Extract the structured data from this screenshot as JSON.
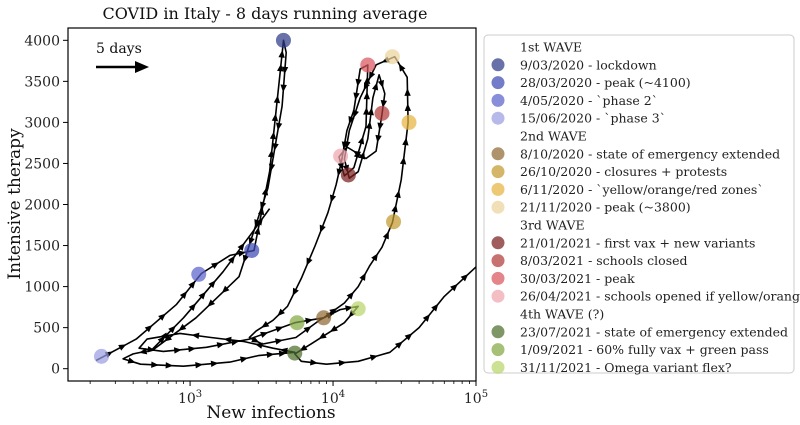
{
  "chart_data": {
    "type": "line",
    "title": "COVID in Italy - 8 days running average",
    "xlabel": "New infections",
    "ylabel": "Intensive therapy",
    "xscale": "log",
    "xlim": [
      140,
      100000
    ],
    "ylim": [
      -150,
      4150
    ],
    "xticks": [
      {
        "value": 1000,
        "base": "10",
        "exp": "3"
      },
      {
        "value": 10000,
        "base": "10",
        "exp": "4"
      },
      {
        "value": 100000,
        "base": "10",
        "exp": "5"
      }
    ],
    "yticks": [
      0,
      500,
      1000,
      1500,
      2000,
      2500,
      3000,
      3500,
      4000
    ],
    "annotation": {
      "text": "5 days",
      "arrow": "right"
    },
    "trajectory": [
      [
        220,
        100
      ],
      [
        420,
        360
      ],
      [
        800,
        780
      ],
      [
        1200,
        1160
      ],
      [
        1900,
        1380
      ],
      [
        2800,
        1440
      ],
      [
        3600,
        2400
      ],
      [
        4200,
        3500
      ],
      [
        4500,
        4000
      ],
      [
        4700,
        3850
      ],
      [
        4400,
        3200
      ],
      [
        3500,
        2200
      ],
      [
        2200,
        1120
      ],
      [
        1100,
        620
      ],
      [
        550,
        230
      ],
      [
        400,
        180
      ],
      [
        340,
        120
      ],
      [
        450,
        55
      ],
      [
        900,
        30
      ],
      [
        1900,
        80
      ],
      [
        3000,
        160
      ],
      [
        5400,
        200
      ],
      [
        3800,
        250
      ],
      [
        2400,
        330
      ],
      [
        1400,
        380
      ],
      [
        850,
        430
      ],
      [
        500,
        360
      ],
      [
        440,
        250
      ],
      [
        650,
        210
      ],
      [
        1300,
        260
      ],
      [
        2600,
        360
      ],
      [
        5400,
        560
      ],
      [
        8600,
        620
      ],
      [
        12000,
        800
      ],
      [
        15000,
        1000
      ],
      [
        18000,
        1250
      ],
      [
        22000,
        1480
      ],
      [
        26000,
        1780
      ],
      [
        30000,
        2300
      ],
      [
        33500,
        3000
      ],
      [
        33000,
        3550
      ],
      [
        27000,
        3800
      ],
      [
        20000,
        3700
      ],
      [
        15500,
        3300
      ],
      [
        13000,
        2900
      ],
      [
        12000,
        2550
      ],
      [
        13000,
        2320
      ],
      [
        15000,
        2400
      ],
      [
        17500,
        2800
      ],
      [
        19000,
        3300
      ],
      [
        21000,
        3580
      ],
      [
        23000,
        3350
      ],
      [
        22000,
        3100
      ],
      [
        20000,
        2650
      ],
      [
        17000,
        2560
      ],
      [
        12500,
        2700
      ],
      [
        11000,
        2580
      ],
      [
        12000,
        2350
      ],
      [
        14000,
        2450
      ],
      [
        17000,
        2950
      ],
      [
        17500,
        3700
      ],
      [
        15500,
        3650
      ],
      [
        14000,
        3150
      ],
      [
        12500,
        2900
      ],
      [
        11500,
        2540
      ],
      [
        10500,
        2240
      ],
      [
        9200,
        1900
      ],
      [
        7500,
        1500
      ],
      [
        6000,
        1100
      ],
      [
        4800,
        760
      ],
      [
        3800,
        590
      ],
      [
        2900,
        460
      ],
      [
        2600,
        380
      ],
      [
        3200,
        300
      ],
      [
        5500,
        380
      ],
      [
        8200,
        600
      ],
      [
        11200,
        720
      ],
      [
        15000,
        760
      ],
      [
        12000,
        560
      ],
      [
        7000,
        300
      ],
      [
        5400,
        180
      ],
      [
        6000,
        90
      ],
      [
        9000,
        55
      ],
      [
        15000,
        90
      ],
      [
        25000,
        200
      ],
      [
        40000,
        500
      ],
      [
        60000,
        880
      ],
      [
        100000,
        1240
      ]
    ],
    "second_trajectory": [
      [
        540,
        230
      ],
      [
        900,
        620
      ],
      [
        1700,
        1180
      ],
      [
        2700,
        1650
      ],
      [
        3600,
        1950
      ]
    ],
    "legend_items": [
      {
        "type": "header",
        "label": "1st WAVE"
      },
      {
        "type": "marker",
        "label": "9/03/2020 - lockdown",
        "color": "#2e3b87",
        "alpha": 0.72
      },
      {
        "type": "marker",
        "label": "28/03/2020 - peak (~4100)",
        "color": "#3d49b3",
        "alpha": 0.72
      },
      {
        "type": "marker",
        "label": "4/05/2020 - `phase 2`",
        "color": "#5b62cc",
        "alpha": 0.72
      },
      {
        "type": "marker",
        "label": "15/06/2020 - `phase 3`",
        "color": "#9a9ee0",
        "alpha": 0.72
      },
      {
        "type": "header",
        "label": "2nd WAVE"
      },
      {
        "type": "marker",
        "label": "8/10/2020 - state of emergency extended",
        "color": "#8f6a35",
        "alpha": 0.72
      },
      {
        "type": "marker",
        "label": "26/10/2020 - closures + protests",
        "color": "#c49a2e",
        "alpha": 0.72
      },
      {
        "type": "marker",
        "label": "6/11/2020 - `yellow/orange/red zones`",
        "color": "#e6b340",
        "alpha": 0.72
      },
      {
        "type": "marker",
        "label": "21/11/2020 - peak (~3800)",
        "color": "#ecd39c",
        "alpha": 0.72
      },
      {
        "type": "header",
        "label": "3rd WAVE"
      },
      {
        "type": "marker",
        "label": "21/01/2021 - first vax + new variants",
        "color": "#7a1f1f",
        "alpha": 0.72
      },
      {
        "type": "marker",
        "label": "8/03/2021 - schools closed",
        "color": "#b23a3a",
        "alpha": 0.72
      },
      {
        "type": "marker",
        "label": "30/03/2021 - peak",
        "color": "#d9545e",
        "alpha": 0.72
      },
      {
        "type": "marker",
        "label": "26/04/2021 - schools opened if yellow/orange",
        "color": "#eea6ae",
        "alpha": 0.72
      },
      {
        "type": "header",
        "label": "4th WAVE (?)"
      },
      {
        "type": "marker",
        "label": "23/07/2021 - state of emergency extended",
        "color": "#4e6e2b",
        "alpha": 0.72
      },
      {
        "type": "marker",
        "label": "1/09/2021 - 60% fully vax + green pass",
        "color": "#84a843",
        "alpha": 0.72
      },
      {
        "type": "marker",
        "label": "31/11/2021 - Omega variant flex?",
        "color": "#b9d66b",
        "alpha": 0.72
      }
    ],
    "points": [
      {
        "x": 4500,
        "y": 4000,
        "legend_index": 1
      },
      {
        "x": 2700,
        "y": 1440,
        "legend_index": 2
      },
      {
        "x": 1150,
        "y": 1150,
        "legend_index": 3
      },
      {
        "x": 240,
        "y": 150,
        "legend_index": 4
      },
      {
        "x": 8600,
        "y": 620,
        "legend_index": 6
      },
      {
        "x": 26500,
        "y": 1790,
        "legend_index": 7
      },
      {
        "x": 34000,
        "y": 3000,
        "legend_index": 8
      },
      {
        "x": 26000,
        "y": 3800,
        "legend_index": 9
      },
      {
        "x": 12800,
        "y": 2360,
        "legend_index": 11
      },
      {
        "x": 22000,
        "y": 3110,
        "legend_index": 12
      },
      {
        "x": 17500,
        "y": 3700,
        "legend_index": 13
      },
      {
        "x": 11300,
        "y": 2590,
        "legend_index": 14
      },
      {
        "x": 5400,
        "y": 190,
        "legend_index": 16
      },
      {
        "x": 5600,
        "y": 560,
        "legend_index": 17
      },
      {
        "x": 15000,
        "y": 730,
        "legend_index": 18
      }
    ]
  }
}
